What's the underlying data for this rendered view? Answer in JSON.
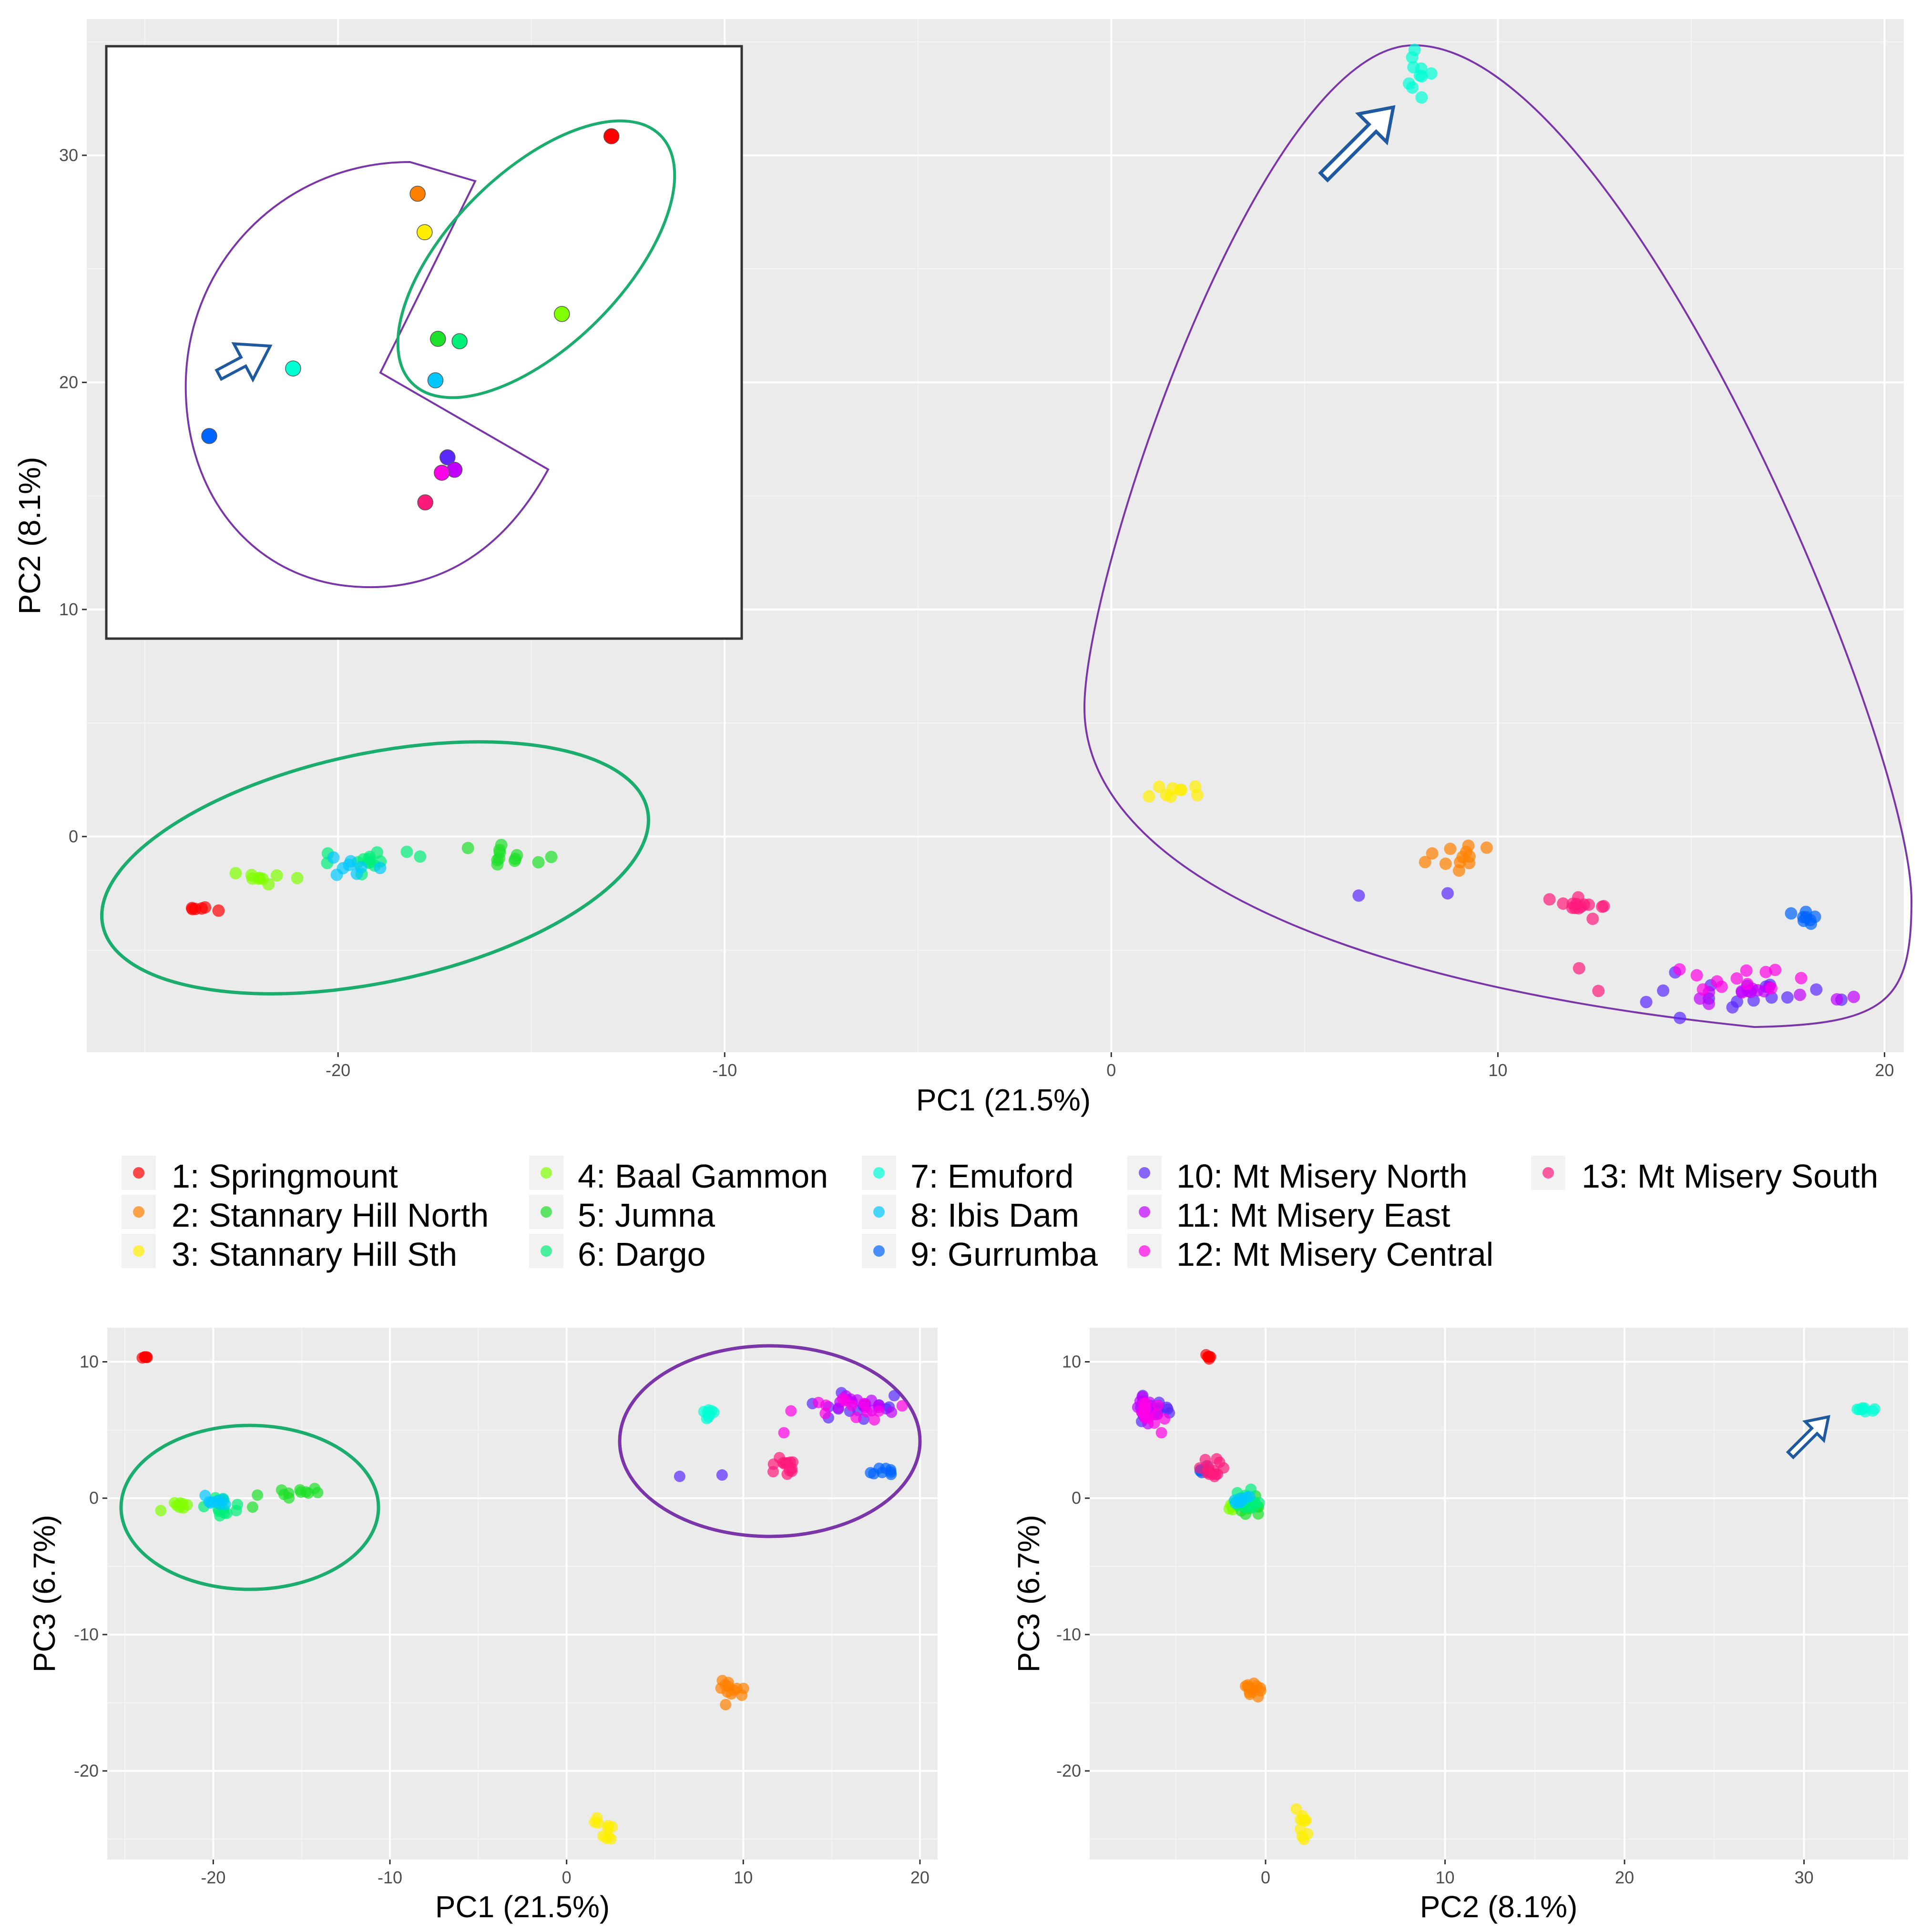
{
  "chart_data": [
    {
      "type": "scatter",
      "id": "pc1_pc2",
      "xlabel": "PC1 (21.5%)",
      "ylabel": "PC2 (8.1%)",
      "xlim": [
        -26.5,
        20.5
      ],
      "ylim": [
        -9.5,
        36
      ],
      "xticks": [
        -20,
        -10,
        0,
        10,
        20
      ],
      "yticks": [
        0,
        10,
        20,
        30
      ],
      "grid": true,
      "clusters": [
        {
          "group": 1,
          "cx": -23.8,
          "cy": -3.2,
          "n": 6,
          "sx": 0.25,
          "sy": 0.1
        },
        {
          "group": 2,
          "cx": 9.1,
          "cy": -0.8,
          "n": 12,
          "sx": 0.45,
          "sy": 0.35
        },
        {
          "group": 3,
          "cx": 1.9,
          "cy": 2.0,
          "n": 9,
          "sx": 0.35,
          "sy": 0.25
        },
        {
          "group": 4,
          "cx": -22.0,
          "cy": -1.8,
          "n": 9,
          "sx": 0.5,
          "sy": 0.12
        },
        {
          "group": 5,
          "cx": -15.5,
          "cy": -0.9,
          "n": 12,
          "sx": 1.2,
          "sy": 0.25
        },
        {
          "group": 6,
          "cx": -19.3,
          "cy": -1.0,
          "n": 14,
          "sx": 0.6,
          "sy": 0.35
        },
        {
          "group": 7,
          "cx": 7.9,
          "cy": 33.3,
          "n": 10,
          "sx": 0.15,
          "sy": 0.6
        },
        {
          "group": 8,
          "cx": -19.7,
          "cy": -1.2,
          "n": 8,
          "sx": 0.4,
          "sy": 0.3
        },
        {
          "group": 9,
          "cx": 17.8,
          "cy": -3.4,
          "n": 8,
          "sx": 0.35,
          "sy": 0.25
        },
        {
          "group": 10,
          "cx": 16.5,
          "cy": -6.6,
          "n": 16,
          "sx": 1.5,
          "sy": 0.5
        },
        {
          "group": 11,
          "cx": 17.0,
          "cy": -6.8,
          "n": 14,
          "sx": 0.8,
          "sy": 0.3
        },
        {
          "group": 12,
          "cx": 16.5,
          "cy": -6.4,
          "n": 12,
          "sx": 0.9,
          "sy": 0.3
        },
        {
          "group": 13,
          "cx": 12.2,
          "cy": -3.1,
          "n": 14,
          "sx": 0.4,
          "sy": 0.25
        }
      ],
      "extra_points": [
        {
          "group": 10,
          "x": 6.4,
          "y": -2.6
        },
        {
          "group": 10,
          "x": 8.7,
          "y": -2.5
        },
        {
          "group": 13,
          "x": 12.1,
          "y": -5.8
        },
        {
          "group": 13,
          "x": 12.6,
          "y": -6.8
        }
      ]
    },
    {
      "type": "scatter",
      "id": "pc1_pc3",
      "xlabel": "PC1 (21.5%)",
      "ylabel": "PC3 (6.7%)",
      "xlim": [
        -26,
        21
      ],
      "ylim": [
        -26.5,
        12.5
      ],
      "xticks": [
        -20,
        -10,
        0,
        10,
        20
      ],
      "yticks": [
        -20,
        -10,
        0,
        10
      ],
      "grid": true,
      "clusters": [
        {
          "group": 1,
          "cx": -23.8,
          "cy": 10.3,
          "n": 6,
          "sx": 0.15,
          "sy": 0.1
        },
        {
          "group": 2,
          "cx": 9.3,
          "cy": -13.9,
          "n": 12,
          "sx": 0.5,
          "sy": 0.4
        },
        {
          "group": 3,
          "cx": 2.0,
          "cy": -24.2,
          "n": 10,
          "sx": 0.3,
          "sy": 0.6
        },
        {
          "group": 4,
          "cx": -22.0,
          "cy": -0.6,
          "n": 8,
          "sx": 0.5,
          "sy": 0.2
        },
        {
          "group": 5,
          "cx": -15.5,
          "cy": 0.2,
          "n": 12,
          "sx": 1.2,
          "sy": 0.3
        },
        {
          "group": 6,
          "cx": -19.5,
          "cy": -0.5,
          "n": 14,
          "sx": 0.6,
          "sy": 0.4
        },
        {
          "group": 7,
          "cx": 8.1,
          "cy": 6.3,
          "n": 8,
          "sx": 0.2,
          "sy": 0.15
        },
        {
          "group": 8,
          "cx": -19.8,
          "cy": -0.3,
          "n": 8,
          "sx": 0.4,
          "sy": 0.3
        },
        {
          "group": 9,
          "cx": 17.8,
          "cy": 1.9,
          "n": 8,
          "sx": 0.4,
          "sy": 0.15
        },
        {
          "group": 10,
          "cx": 17.0,
          "cy": 6.7,
          "n": 14,
          "sx": 1.3,
          "sy": 0.5
        },
        {
          "group": 11,
          "cx": 16.5,
          "cy": 6.9,
          "n": 14,
          "sx": 1.0,
          "sy": 0.4
        },
        {
          "group": 12,
          "cx": 16.0,
          "cy": 6.6,
          "n": 12,
          "sx": 1.1,
          "sy": 0.4
        },
        {
          "group": 13,
          "cx": 12.2,
          "cy": 2.3,
          "n": 14,
          "sx": 0.35,
          "sy": 0.45
        }
      ],
      "extra_points": [
        {
          "group": 10,
          "x": 6.4,
          "y": 1.6
        },
        {
          "group": 10,
          "x": 8.8,
          "y": 1.7
        },
        {
          "group": 12,
          "x": 12.3,
          "y": 4.8
        },
        {
          "group": 12,
          "x": 12.7,
          "y": 6.4
        }
      ]
    },
    {
      "type": "scatter",
      "id": "pc2_pc3",
      "xlabel": "PC2 (8.1%)",
      "ylabel": "PC3 (6.7%)",
      "xlim": [
        -9.8,
        35.8
      ],
      "ylim": [
        -26.5,
        12.5
      ],
      "xticks": [
        0,
        10,
        20,
        30
      ],
      "yticks": [
        -20,
        -10,
        0,
        10
      ],
      "grid": true,
      "clusters": [
        {
          "group": 1,
          "cx": -3.2,
          "cy": 10.3,
          "n": 6,
          "sx": 0.1,
          "sy": 0.1
        },
        {
          "group": 2,
          "cx": -0.8,
          "cy": -13.9,
          "n": 12,
          "sx": 0.35,
          "sy": 0.4
        },
        {
          "group": 3,
          "cx": 2.0,
          "cy": -24.2,
          "n": 10,
          "sx": 0.25,
          "sy": 0.6
        },
        {
          "group": 4,
          "cx": -1.8,
          "cy": -0.6,
          "n": 8,
          "sx": 0.15,
          "sy": 0.2
        },
        {
          "group": 5,
          "cx": -0.9,
          "cy": -0.5,
          "n": 12,
          "sx": 0.3,
          "sy": 0.35
        },
        {
          "group": 6,
          "cx": -1.0,
          "cy": -0.3,
          "n": 14,
          "sx": 0.35,
          "sy": 0.4
        },
        {
          "group": 7,
          "cx": 33.3,
          "cy": 6.4,
          "n": 8,
          "sx": 0.5,
          "sy": 0.12
        },
        {
          "group": 8,
          "cx": -1.2,
          "cy": -0.2,
          "n": 8,
          "sx": 0.3,
          "sy": 0.3
        },
        {
          "group": 9,
          "cx": -3.4,
          "cy": 2.0,
          "n": 8,
          "sx": 0.25,
          "sy": 0.15
        },
        {
          "group": 10,
          "cx": -6.4,
          "cy": 6.4,
          "n": 14,
          "sx": 0.45,
          "sy": 0.5
        },
        {
          "group": 11,
          "cx": -6.8,
          "cy": 6.8,
          "n": 14,
          "sx": 0.35,
          "sy": 0.4
        },
        {
          "group": 12,
          "cx": -6.6,
          "cy": 6.6,
          "n": 12,
          "sx": 0.4,
          "sy": 0.45
        },
        {
          "group": 13,
          "cx": -3.0,
          "cy": 2.2,
          "n": 14,
          "sx": 0.3,
          "sy": 0.45
        }
      ],
      "extra_points": [
        {
          "group": 12,
          "x": -5.8,
          "y": 4.8
        },
        {
          "group": 12,
          "x": -6.2,
          "y": 5.5
        }
      ]
    },
    {
      "type": "scatter",
      "id": "inset",
      "xlim": [
        0,
        1
      ],
      "ylim": [
        0,
        1
      ],
      "points": [
        {
          "group": 1,
          "x": 0.795,
          "y": 0.848
        },
        {
          "group": 2,
          "x": 0.49,
          "y": 0.751
        },
        {
          "group": 3,
          "x": 0.501,
          "y": 0.686
        },
        {
          "group": 4,
          "x": 0.717,
          "y": 0.548
        },
        {
          "group": 5,
          "x": 0.522,
          "y": 0.506
        },
        {
          "group": 6,
          "x": 0.556,
          "y": 0.502
        },
        {
          "group": 7,
          "x": 0.294,
          "y": 0.456
        },
        {
          "group": 8,
          "x": 0.518,
          "y": 0.436
        },
        {
          "group": 9,
          "x": 0.162,
          "y": 0.342
        },
        {
          "group": 10,
          "x": 0.537,
          "y": 0.306
        },
        {
          "group": 11,
          "x": 0.548,
          "y": 0.285
        },
        {
          "group": 12,
          "x": 0.528,
          "y": 0.28
        },
        {
          "group": 13,
          "x": 0.502,
          "y": 0.23
        }
      ]
    }
  ],
  "legend": {
    "items": [
      {
        "label": "1: Springmount",
        "color": "#ff0000"
      },
      {
        "label": "2: Stannary Hill North",
        "color": "#ff8000"
      },
      {
        "label": "3: Stannary Hill Sth",
        "color": "#ffee00"
      },
      {
        "label": "4: Baal Gammon",
        "color": "#80ff00"
      },
      {
        "label": "5: Jumna",
        "color": "#1edf2a"
      },
      {
        "label": "6: Dargo",
        "color": "#00f07a"
      },
      {
        "label": "7: Emuford",
        "color": "#00ffd5"
      },
      {
        "label": "8: Ibis Dam",
        "color": "#00c8ff"
      },
      {
        "label": "9: Gurrumba",
        "color": "#0064ff"
      },
      {
        "label": "10: Mt Misery North",
        "color": "#5a28ff"
      },
      {
        "label": "11: Mt Misery East",
        "color": "#c000ff"
      },
      {
        "label": "12: Mt Misery Central",
        "color": "#ff00e6"
      },
      {
        "label": "13: Mt Misery South",
        "color": "#ff1a7a"
      }
    ]
  },
  "colors": {
    "green_outline": "#1aad6d",
    "purple_outline": "#7a35a8",
    "arrow": "#1f5aa0"
  }
}
